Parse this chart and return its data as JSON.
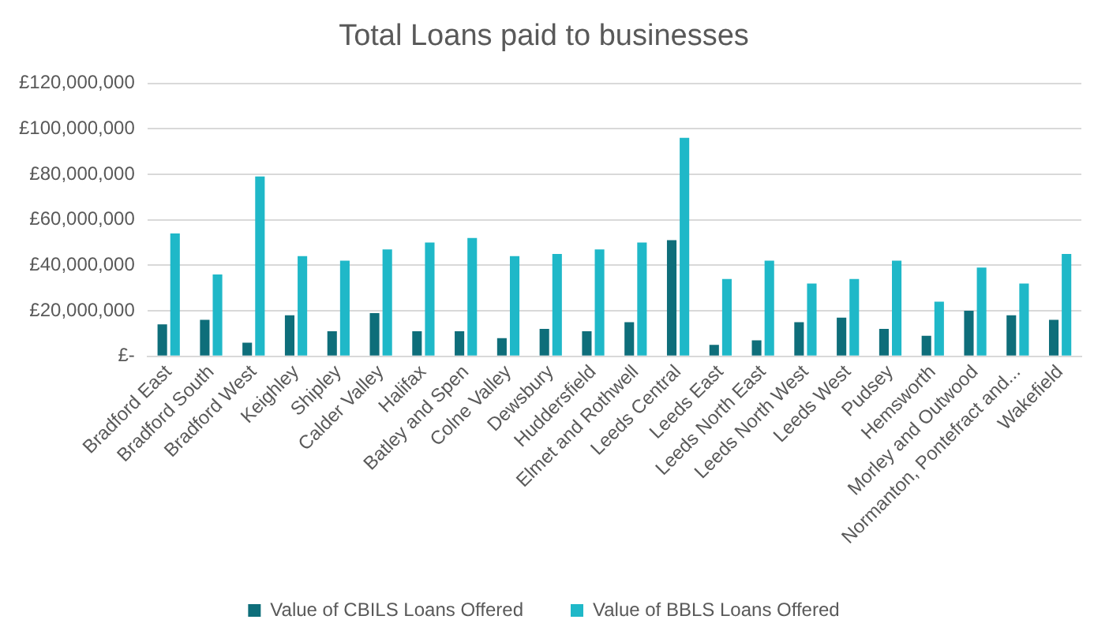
{
  "chart_data": {
    "type": "bar",
    "title": "Total Loans paid to businesses",
    "categories": [
      "Bradford East",
      "Bradford South",
      "Bradford West",
      "Keighley",
      "Shipley",
      "Calder Valley",
      "Halifax",
      "Batley and Spen",
      "Colne Valley",
      "Dewsbury",
      "Huddersfield",
      "Elmet and Rothwell",
      "Leeds Central",
      "Leeds East",
      "Leeds North East",
      "Leeds North West",
      "Leeds West",
      "Pudsey",
      "Hemsworth",
      "Morley and Outwood",
      "Normanton, Pontefract and...",
      "Wakefield"
    ],
    "series": [
      {
        "name": "Value of CBILS Loans Offered",
        "color": "#0e6e7a",
        "values": [
          14000000,
          16000000,
          6000000,
          18000000,
          11000000,
          19000000,
          11000000,
          11000000,
          8000000,
          12000000,
          11000000,
          15000000,
          51000000,
          5000000,
          7000000,
          15000000,
          17000000,
          12000000,
          9000000,
          20000000,
          18000000,
          16000000
        ]
      },
      {
        "name": "Value of BBLS Loans Offered",
        "color": "#1fb8c8",
        "values": [
          54000000,
          36000000,
          79000000,
          44000000,
          42000000,
          47000000,
          50000000,
          52000000,
          44000000,
          45000000,
          47000000,
          50000000,
          96000000,
          34000000,
          42000000,
          32000000,
          34000000,
          42000000,
          24000000,
          39000000,
          32000000,
          45000000
        ]
      }
    ],
    "ylim": [
      0,
      120000000
    ],
    "yticks": [
      {
        "value": 0,
        "label": "£-"
      },
      {
        "value": 20000000,
        "label": "£20,000,000"
      },
      {
        "value": 40000000,
        "label": "£40,000,000"
      },
      {
        "value": 60000000,
        "label": "£60,000,000"
      },
      {
        "value": 80000000,
        "label": "£80,000,000"
      },
      {
        "value": 100000000,
        "label": "£100,000,000"
      },
      {
        "value": 120000000,
        "label": "£120,000,000"
      }
    ],
    "grid": "y",
    "legend": "bottom"
  }
}
